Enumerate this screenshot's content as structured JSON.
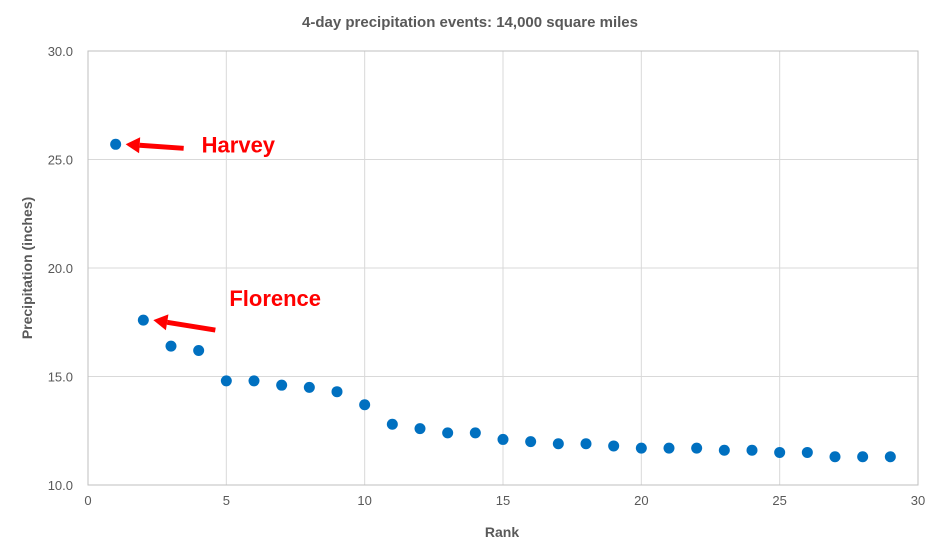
{
  "chart_data": {
    "type": "scatter",
    "title": "4-day precipitation events:  14,000 square miles",
    "xlabel": "Rank",
    "ylabel": "Precipitation (inches)",
    "xlim": [
      0,
      30
    ],
    "ylim": [
      10,
      30
    ],
    "xticks": [
      0,
      5,
      10,
      15,
      20,
      25,
      30
    ],
    "yticks": [
      10.0,
      15.0,
      20.0,
      25.0,
      30.0
    ],
    "ytick_labels": [
      "10.0",
      "15.0",
      "20.0",
      "25.0",
      "30.0"
    ],
    "grid": true,
    "point_color": "#0070c0",
    "annotation_color": "#ff0000",
    "series": [
      {
        "x": [
          1,
          2,
          3,
          4,
          5,
          6,
          7,
          8,
          9,
          10,
          11,
          12,
          13,
          14,
          15,
          16,
          17,
          18,
          19,
          20,
          21,
          22,
          23,
          24,
          25,
          26,
          27,
          28,
          29
        ],
        "y": [
          25.7,
          17.6,
          16.4,
          16.2,
          14.8,
          14.8,
          14.6,
          14.5,
          14.3,
          13.7,
          12.8,
          12.6,
          12.4,
          12.4,
          12.1,
          12.0,
          11.9,
          11.9,
          11.8,
          11.7,
          11.7,
          11.7,
          11.6,
          11.6,
          11.5,
          11.5,
          11.3,
          11.3,
          11.3
        ]
      }
    ],
    "annotations": [
      {
        "text": "Harvey",
        "x": 1,
        "y": 25.7
      },
      {
        "text": "Florence",
        "x": 2,
        "y": 17.6
      }
    ]
  }
}
